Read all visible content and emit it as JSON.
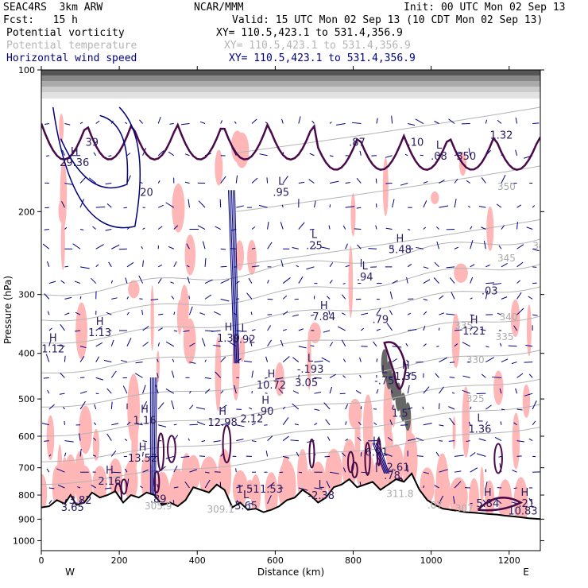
{
  "header": {
    "model": "SEAC4RS  3km ARW",
    "org": "NCAR/MMM",
    "init": "Init: 00 UTC Mon 02 Sep 13",
    "fcst": "Fcst:   15 h",
    "valid": "Valid: 15 UTC Mon 02 Sep 13 (10 CDT Mon 02 Sep 13)"
  },
  "fields": [
    {
      "name": "Potential vorticity",
      "xy": "XY= 110.5,423.1 to 531.4,356.9",
      "color": "#000000"
    },
    {
      "name": "Potential temperature",
      "xy": "XY= 110.5,423.1 to 531.4,356.9",
      "color": "#b4b4b4"
    },
    {
      "name": "Horizontal wind speed",
      "xy": "XY= 110.5,423.1 to 531.4,356.9",
      "color": "#000080"
    }
  ],
  "chart_data": {
    "type": "vertical-cross-section",
    "xlabel": "Distance (km)",
    "ylabel": "Pressure (hPa)",
    "xlim": [
      0,
      1280
    ],
    "ylim": [
      1050,
      100
    ],
    "y_scale": "log",
    "x_ticks": [
      "0",
      "200",
      "400",
      "600",
      "800",
      "1000",
      "1200"
    ],
    "y_ticks": [
      "100",
      "200",
      "300",
      "400",
      "500",
      "600",
      "700",
      "800",
      "900",
      "1000"
    ],
    "x_end_labels": {
      "left": "W",
      "right": "E"
    },
    "colors": {
      "pv_fill": "#ffb6b6",
      "pv_contour": "#4a0a4a",
      "theta": "#b4b4b4",
      "wind": "#000080",
      "extrema": "#2a1a5e",
      "terrain": "#000000"
    },
    "theta_contour_labels": [
      {
        "x": 1170,
        "p": 180,
        "t": "350"
      },
      {
        "x": 1170,
        "p": 255,
        "t": "345"
      },
      {
        "x": 1175,
        "p": 340,
        "t": "340"
      },
      {
        "x": 1165,
        "p": 375,
        "t": "335"
      },
      {
        "x": 1090,
        "p": 420,
        "t": "330"
      },
      {
        "x": 1090,
        "p": 508,
        "t": "325"
      },
      {
        "x": 1060,
        "p": 355,
        "t": "335"
      },
      {
        "x": 1260,
        "p": 240,
        "t": "34"
      }
    ],
    "terrain_labels": [
      {
        "x": 300,
        "p": 858,
        "t": "305.9"
      },
      {
        "x": 460,
        "p": 872,
        "t": "309.1"
      },
      {
        "x": 920,
        "p": 808,
        "t": "311.8"
      },
      {
        "x": 1085,
        "p": 868,
        "t": "307"
      },
      {
        "x": 1010,
        "p": 855,
        "t": ".07"
      }
    ],
    "extrema": [
      {
        "x": 85,
        "p": 160,
        "kind": "H",
        "value": "29.36"
      },
      {
        "x": 130,
        "p": 145,
        "kind": "",
        "value": "39"
      },
      {
        "x": 270,
        "p": 185,
        "kind": "",
        "value": "20"
      },
      {
        "x": 30,
        "p": 398,
        "kind": "H",
        "value": "1.12"
      },
      {
        "x": 150,
        "p": 368,
        "kind": "H",
        "value": "1.13"
      },
      {
        "x": 480,
        "p": 378,
        "kind": "H",
        "value": "1.39"
      },
      {
        "x": 520,
        "p": 380,
        "kind": "L",
        "value": "0.92"
      },
      {
        "x": 615,
        "p": 185,
        "kind": "L",
        "value": ".95"
      },
      {
        "x": 700,
        "p": 240,
        "kind": "L",
        "value": ".25"
      },
      {
        "x": 830,
        "p": 280,
        "kind": "L",
        "value": ".94"
      },
      {
        "x": 870,
        "p": 345,
        "kind": "",
        "value": ".79"
      },
      {
        "x": 920,
        "p": 245,
        "kind": "H",
        "value": "5.48"
      },
      {
        "x": 725,
        "p": 340,
        "kind": "H",
        "value": "7.84"
      },
      {
        "x": 690,
        "p": 440,
        "kind": "L",
        "value": "-.193"
      },
      {
        "x": 680,
        "p": 470,
        "kind": "",
        "value": "3.05"
      },
      {
        "x": 590,
        "p": 475,
        "kind": "H",
        "value": "10.72"
      },
      {
        "x": 575,
        "p": 540,
        "kind": "H",
        "value": ".90"
      },
      {
        "x": 880,
        "p": 465,
        "kind": "L",
        "value": "-.75"
      },
      {
        "x": 935,
        "p": 455,
        "kind": "H",
        "value": "1.35"
      },
      {
        "x": 920,
        "p": 545,
        "kind": "",
        "value": "1.5"
      },
      {
        "x": 1150,
        "p": 300,
        "kind": "",
        "value": ".03"
      },
      {
        "x": 1110,
        "p": 365,
        "kind": "H",
        "value": "1.21"
      },
      {
        "x": 1125,
        "p": 590,
        "kind": "L",
        "value": "1.36"
      },
      {
        "x": 810,
        "p": 145,
        "kind": "",
        "value": ".87"
      },
      {
        "x": 960,
        "p": 145,
        "kind": "",
        "value": ".10"
      },
      {
        "x": 1020,
        "p": 155,
        "kind": "L",
        "value": ".08"
      },
      {
        "x": 1180,
        "p": 140,
        "kind": "",
        "value": "1.32"
      },
      {
        "x": 1090,
        "p": 155,
        "kind": "",
        "value": "350"
      },
      {
        "x": 265,
        "p": 565,
        "kind": "H",
        "value": "1.16"
      },
      {
        "x": 465,
        "p": 570,
        "kind": "H",
        "value": "12.98"
      },
      {
        "x": 540,
        "p": 560,
        "kind": "",
        "value": "2.12"
      },
      {
        "x": 260,
        "p": 680,
        "kind": "H",
        "value": "13.52"
      },
      {
        "x": 175,
        "p": 760,
        "kind": "H",
        "value": "2.16"
      },
      {
        "x": 860,
        "p": 660,
        "kind": "H",
        "value": "6.91"
      },
      {
        "x": 915,
        "p": 710,
        "kind": "",
        "value": "2.61"
      },
      {
        "x": 900,
        "p": 740,
        "kind": "",
        "value": ".78"
      },
      {
        "x": 530,
        "p": 790,
        "kind": "",
        "value": "1.51"
      },
      {
        "x": 590,
        "p": 790,
        "kind": "",
        "value": "1.53"
      },
      {
        "x": 718,
        "p": 815,
        "kind": "L",
        "value": "-2.38"
      },
      {
        "x": 100,
        "p": 835,
        "kind": "",
        "value": "3.82"
      },
      {
        "x": 80,
        "p": 865,
        "kind": "",
        "value": "3.65"
      },
      {
        "x": 300,
        "p": 830,
        "kind": "",
        "value": ".89"
      },
      {
        "x": 525,
        "p": 858,
        "kind": "L",
        "value": "3.65"
      },
      {
        "x": 1145,
        "p": 848,
        "kind": "H",
        "value": "5.84"
      },
      {
        "x": 1240,
        "p": 848,
        "kind": "H",
        "value": "-.21"
      },
      {
        "x": 1235,
        "p": 880,
        "kind": "",
        "value": "10.83"
      }
    ]
  }
}
